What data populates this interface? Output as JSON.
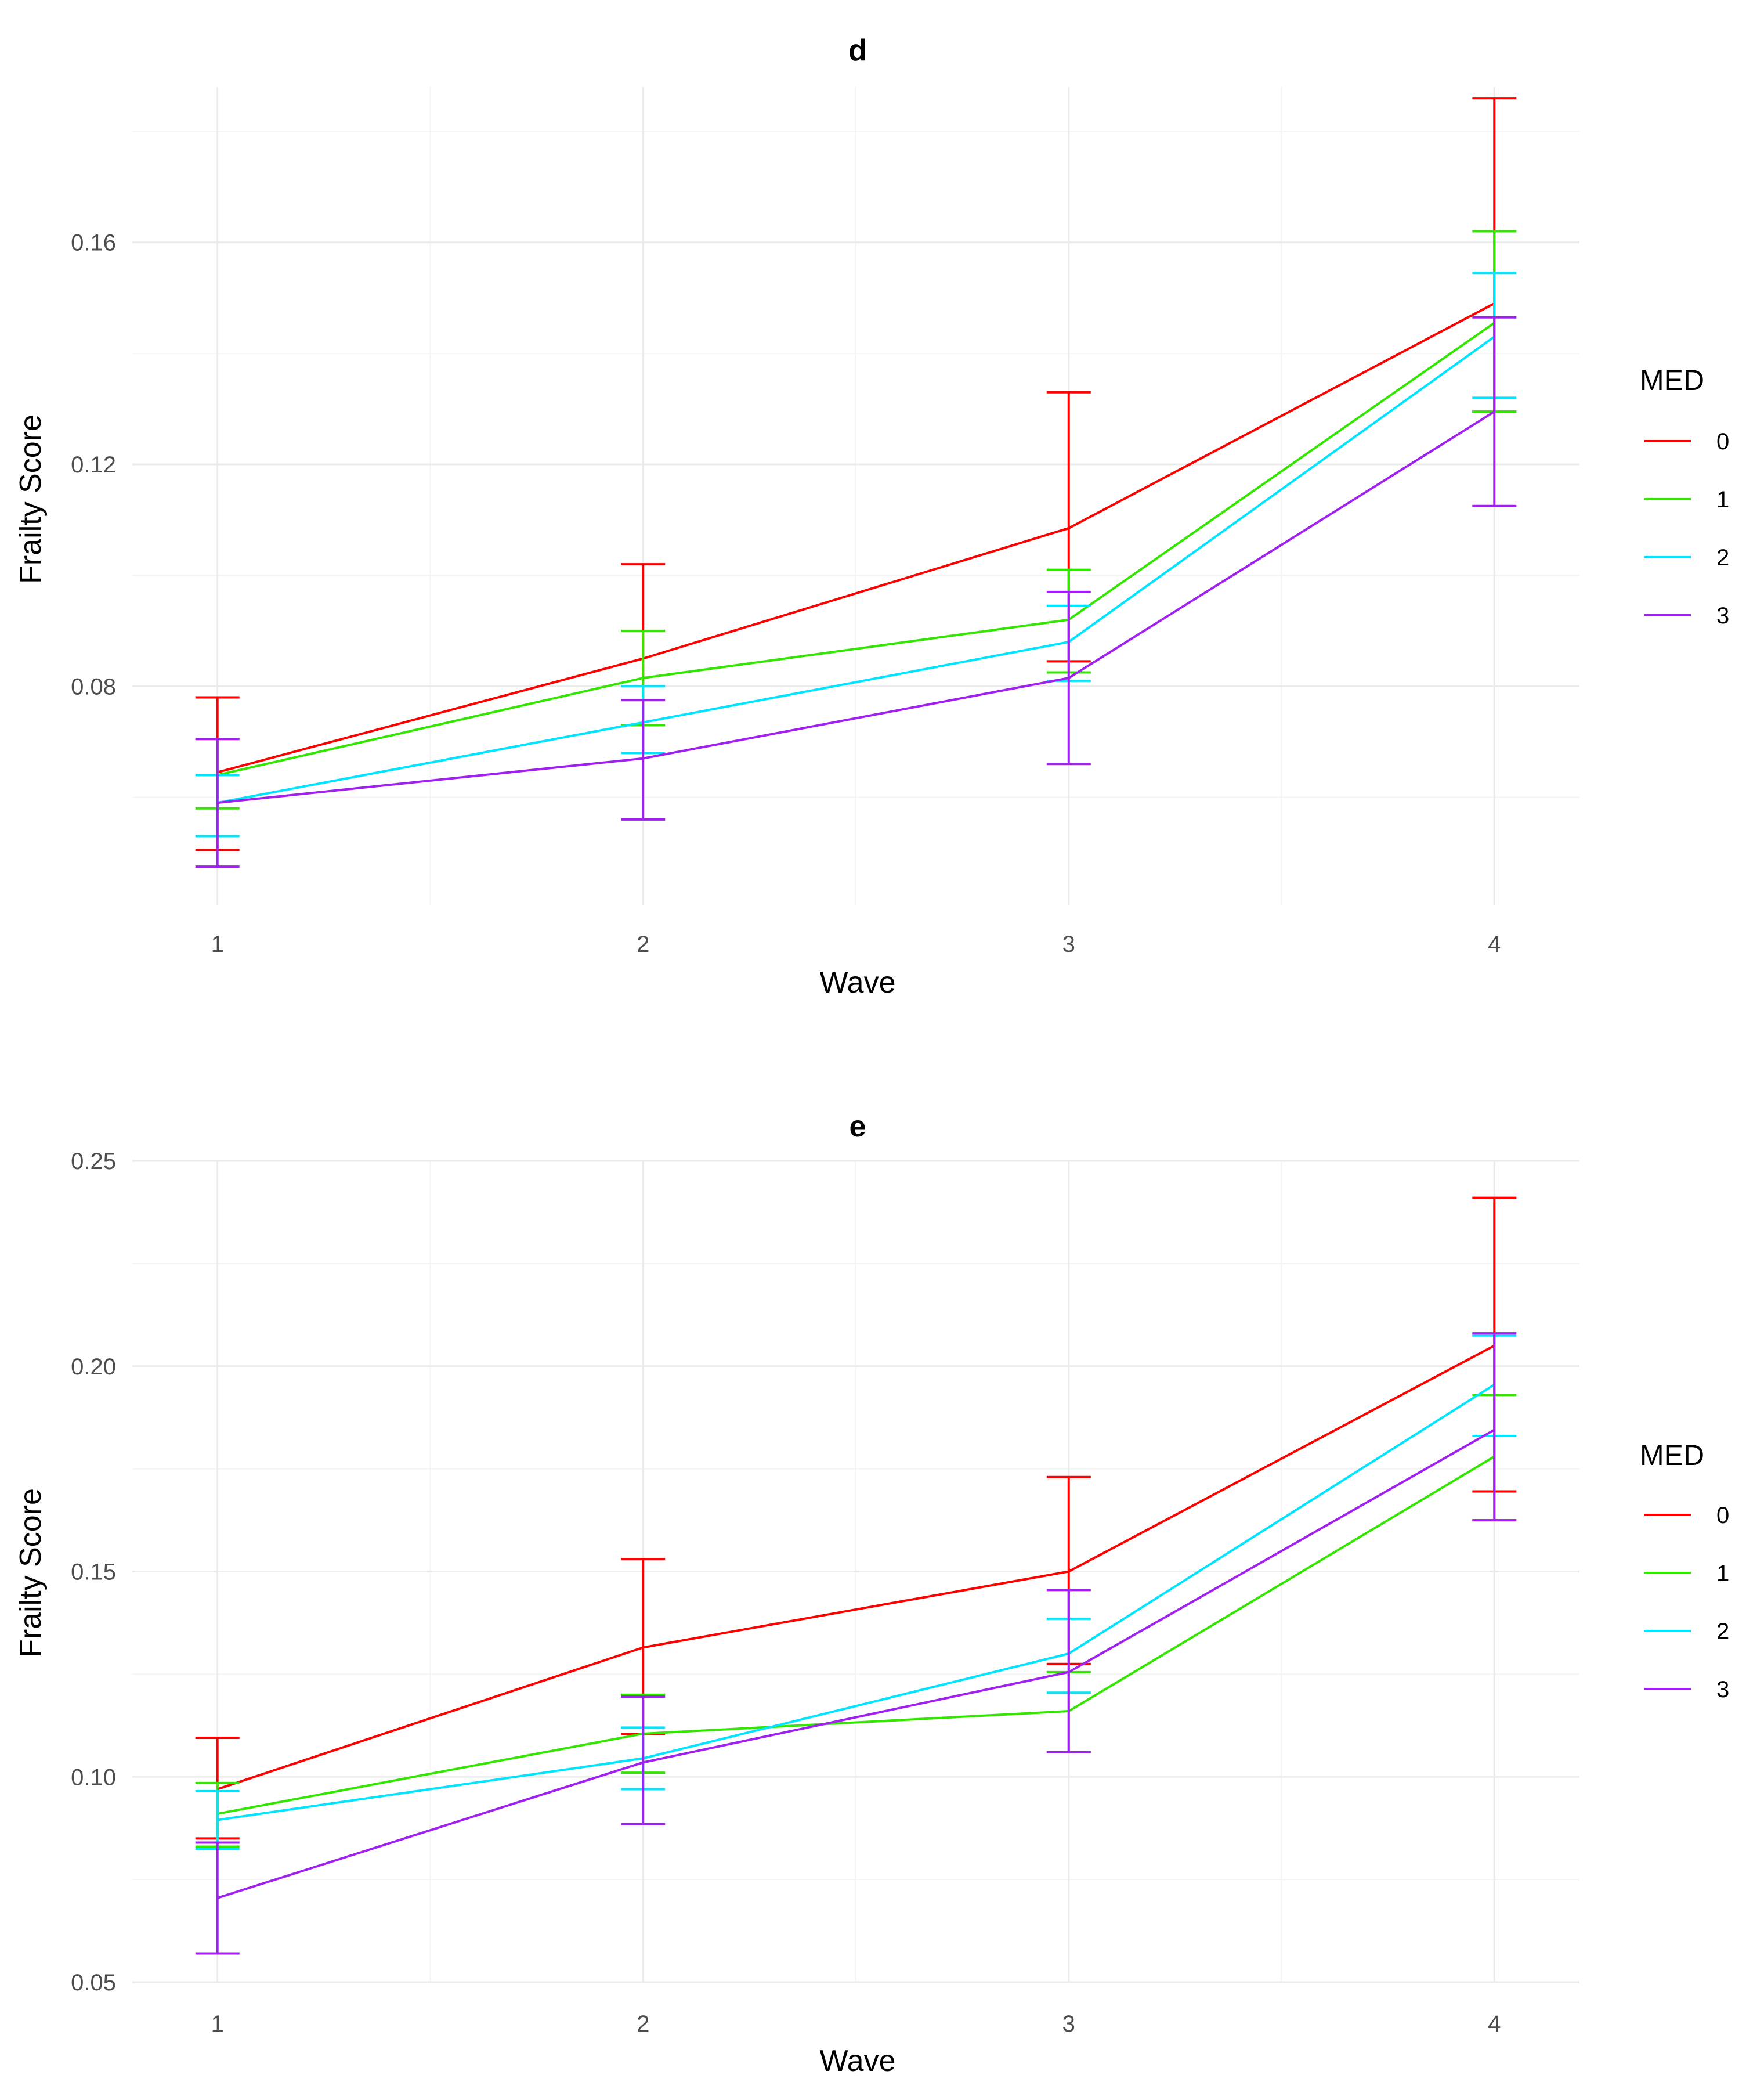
{
  "chart_data": [
    {
      "type": "line",
      "title": "d",
      "xlabel": "Wave",
      "ylabel": "Frailty Score",
      "x": [
        1,
        2,
        3,
        4
      ],
      "x_ticks": [
        "1",
        "2",
        "3",
        "4"
      ],
      "xlim": [
        0.8,
        4.2
      ],
      "ylim": [
        0.0405,
        0.188
      ],
      "y_ticks": [
        0.08,
        0.12,
        0.16
      ],
      "y_tick_labels": [
        "0.08",
        "0.12",
        "0.16"
      ],
      "y_minor": [
        0.06,
        0.1,
        0.14,
        0.18
      ],
      "grid": true,
      "legend": {
        "title": "MED",
        "position": "right"
      },
      "series": [
        {
          "name": "0",
          "color": "#FF0000",
          "values": [
            0.0645,
            0.085,
            0.1085,
            0.149
          ],
          "lower": [
            0.0505,
            0.068,
            0.0845,
            0.1295
          ],
          "upper": [
            0.078,
            0.102,
            0.133,
            0.186
          ]
        },
        {
          "name": "1",
          "color": "#33E600",
          "values": [
            0.064,
            0.0815,
            0.092,
            0.1455
          ],
          "lower": [
            0.058,
            0.073,
            0.0825,
            0.1295
          ],
          "upper": [
            0.0705,
            0.09,
            0.101,
            0.162
          ]
        },
        {
          "name": "2",
          "color": "#00E5FF",
          "values": [
            0.059,
            0.0735,
            0.088,
            0.143
          ],
          "lower": [
            0.053,
            0.068,
            0.081,
            0.132
          ],
          "upper": [
            0.064,
            0.08,
            0.0945,
            0.1545
          ]
        },
        {
          "name": "3",
          "color": "#A020F0",
          "values": [
            0.059,
            0.067,
            0.0815,
            0.1295
          ],
          "lower": [
            0.0475,
            0.056,
            0.066,
            0.1125
          ],
          "upper": [
            0.0705,
            0.0775,
            0.097,
            0.1465
          ]
        }
      ]
    },
    {
      "type": "line",
      "title": "e",
      "xlabel": "Wave",
      "ylabel": "Frailty Score",
      "x": [
        1,
        2,
        3,
        4
      ],
      "x_ticks": [
        "1",
        "2",
        "3",
        "4"
      ],
      "xlim": [
        0.8,
        4.2
      ],
      "ylim": [
        0.05,
        0.25
      ],
      "y_ticks": [
        0.05,
        0.1,
        0.15,
        0.2,
        0.25
      ],
      "y_tick_labels": [
        "0.05",
        "0.10",
        "0.15",
        "0.20",
        "0.25"
      ],
      "y_minor": [
        0.075,
        0.125,
        0.175,
        0.225
      ],
      "grid": true,
      "legend": {
        "title": "MED",
        "position": "right"
      },
      "series": [
        {
          "name": "0",
          "color": "#FF0000",
          "values": [
            0.097,
            0.1315,
            0.15,
            0.205
          ],
          "lower": [
            0.085,
            0.1105,
            0.1275,
            0.1695
          ],
          "upper": [
            0.1095,
            0.153,
            0.173,
            0.241
          ]
        },
        {
          "name": "1",
          "color": "#33E600",
          "values": [
            0.091,
            0.1105,
            0.116,
            0.178
          ],
          "lower": [
            0.083,
            0.101,
            0.106,
            0.1625
          ],
          "upper": [
            0.0985,
            0.12,
            0.1255,
            0.193
          ]
        },
        {
          "name": "2",
          "color": "#00E5FF",
          "values": [
            0.0895,
            0.1045,
            0.13,
            0.1955
          ],
          "lower": [
            0.0825,
            0.097,
            0.1205,
            0.183
          ],
          "upper": [
            0.0965,
            0.112,
            0.1385,
            0.2075
          ]
        },
        {
          "name": "3",
          "color": "#A020F0",
          "values": [
            0.0705,
            0.1035,
            0.1255,
            0.1845
          ],
          "lower": [
            0.057,
            0.0885,
            0.106,
            0.1625
          ],
          "upper": [
            0.084,
            0.1195,
            0.1455,
            0.208
          ]
        }
      ]
    }
  ]
}
